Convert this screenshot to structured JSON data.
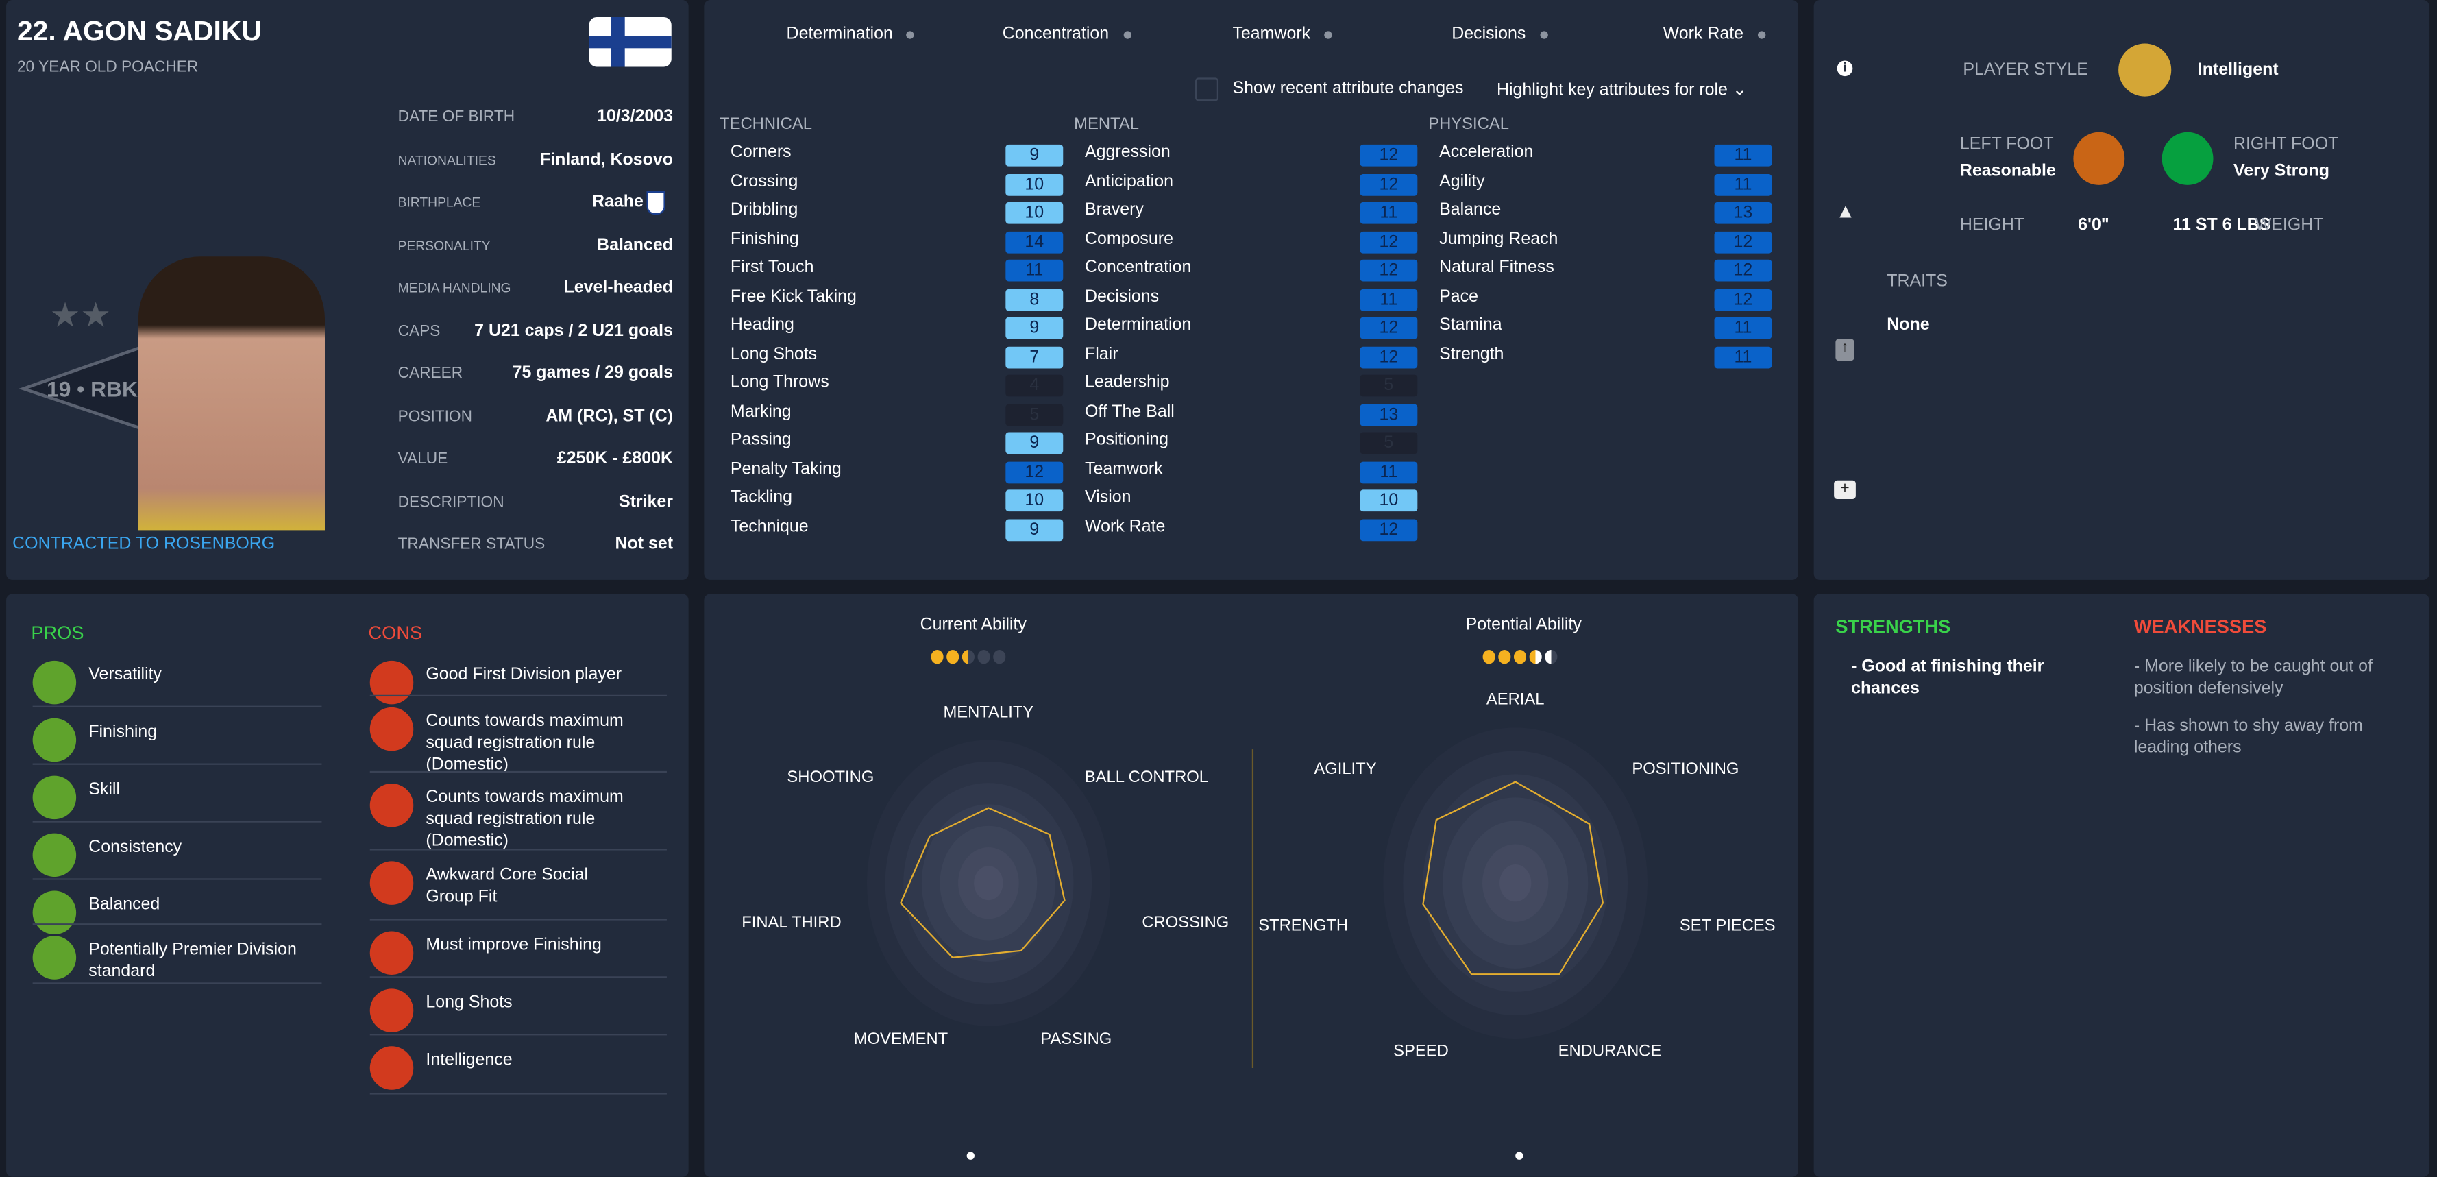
{
  "player": {
    "title": "22. AGON SADIKU",
    "subtitle": "20 YEAR OLD POACHER",
    "contract": "CONTRACTED TO ROSENBORG",
    "club_logo_text": "19 • RBK",
    "info": [
      {
        "label": "DATE OF BIRTH",
        "value": "10/3/2003"
      },
      {
        "label": "NATIONALITIES",
        "value": "Finland, Kosovo"
      },
      {
        "label": "BIRTHPLACE",
        "value": "Raahe"
      },
      {
        "label": "PERSONALITY",
        "value": "Balanced"
      },
      {
        "label": "MEDIA HANDLING",
        "value": "Level-headed"
      },
      {
        "label": "CAPS",
        "value": "7 U21 caps / 2 U21 goals"
      },
      {
        "label": "CAREER",
        "value": "75  games /  29 goals"
      },
      {
        "label": "POSITION",
        "value": "AM (RC), ST (C)"
      },
      {
        "label": "VALUE",
        "value": "£250K - £800K"
      },
      {
        "label": "DESCRIPTION",
        "value": "Striker"
      },
      {
        "label": "TRANSFER STATUS",
        "value": "Not set"
      }
    ]
  },
  "key_attributes": [
    "Determination",
    "Concentration",
    "Teamwork",
    "Decisions",
    "Work Rate"
  ],
  "options": {
    "show_changes": "Show recent attribute changes",
    "show_changes_checked": false,
    "highlight": "Highlight key attributes for role"
  },
  "attributes": {
    "technical": {
      "title": "TECHNICAL",
      "items": [
        [
          "Corners",
          9
        ],
        [
          "Crossing",
          10
        ],
        [
          "Dribbling",
          10
        ],
        [
          "Finishing",
          14
        ],
        [
          "First Touch",
          11
        ],
        [
          "Free Kick Taking",
          8
        ],
        [
          "Heading",
          9
        ],
        [
          "Long Shots",
          7
        ],
        [
          "Long Throws",
          4
        ],
        [
          "Marking",
          5
        ],
        [
          "Passing",
          9
        ],
        [
          "Penalty Taking",
          12
        ],
        [
          "Tackling",
          10
        ],
        [
          "Technique",
          9
        ]
      ]
    },
    "mental": {
      "title": "MENTAL",
      "items": [
        [
          "Aggression",
          12
        ],
        [
          "Anticipation",
          12
        ],
        [
          "Bravery",
          11
        ],
        [
          "Composure",
          12
        ],
        [
          "Concentration",
          12
        ],
        [
          "Decisions",
          11
        ],
        [
          "Determination",
          12
        ],
        [
          "Flair",
          12
        ],
        [
          "Leadership",
          5
        ],
        [
          "Off The Ball",
          13
        ],
        [
          "Positioning",
          5
        ],
        [
          "Teamwork",
          11
        ],
        [
          "Vision",
          10
        ],
        [
          "Work Rate",
          12
        ]
      ]
    },
    "physical": {
      "title": "PHYSICAL",
      "items": [
        [
          "Acceleration",
          11
        ],
        [
          "Agility",
          11
        ],
        [
          "Balance",
          13
        ],
        [
          "Jumping Reach",
          12
        ],
        [
          "Natural Fitness",
          12
        ],
        [
          "Pace",
          12
        ],
        [
          "Stamina",
          11
        ],
        [
          "Strength",
          11
        ]
      ]
    }
  },
  "profile": {
    "player_style_label": "PLAYER STYLE",
    "player_style": "Intelligent",
    "left_foot_label": "LEFT FOOT",
    "left_foot": "Reasonable",
    "right_foot_label": "RIGHT FOOT",
    "right_foot": "Very Strong",
    "height_label": "HEIGHT",
    "height": "6'0\"",
    "weight": "11 ST 6 LBS",
    "weight_label": "WEIGHT",
    "traits_label": "TRAITS",
    "traits": "None",
    "colors": {
      "style": "#d4a636",
      "left_foot": "#c96516",
      "right_foot": "#06a03f"
    }
  },
  "pros": {
    "title": "PROS",
    "items": [
      "Versatility",
      "Finishing",
      "Skill",
      "Consistency",
      "Balanced",
      "Potentially Premier Division standard"
    ]
  },
  "cons": {
    "title": "CONS",
    "items": [
      "Good First Division player",
      "Counts towards maximum squad registration rule (Domestic)",
      "Counts towards maximum squad registration rule (Domestic)",
      "Awkward Core Social Group Fit",
      "Must improve Finishing",
      "Long Shots",
      "Intelligence"
    ]
  },
  "ability": {
    "current_label": "Current Ability",
    "current_stars": 2.5,
    "potential_label": "Potential Ability",
    "potential_stars_range": [
      3.5,
      4.5
    ]
  },
  "chart_data": [
    {
      "type": "radar",
      "title": "Current Ability",
      "axes": [
        "MENTALITY",
        "BALL CONTROL",
        "CROSSING",
        "PASSING",
        "MOVEMENT",
        "FINAL THIRD",
        "SHOOTING"
      ],
      "values": [
        0.5,
        0.52,
        0.52,
        0.5,
        0.55,
        0.6,
        0.5
      ],
      "range": [
        0,
        1
      ]
    },
    {
      "type": "radar",
      "title": "Potential Ability",
      "axes": [
        "AERIAL",
        "POSITIONING",
        "SET PIECES",
        "ENDURANCE",
        "SPEED",
        "STRENGTH",
        "AGILITY"
      ],
      "values": [
        0.62,
        0.58,
        0.55,
        0.62,
        0.62,
        0.58,
        0.62
      ],
      "range": [
        0,
        1
      ]
    }
  ],
  "strengths": {
    "title": "STRENGTHS",
    "items": [
      "- Good at finishing their chances"
    ]
  },
  "weaknesses": {
    "title": "WEAKNESSES",
    "items": [
      "- More likely to be caught out of position defensively",
      "- Has shown to shy away from leading others"
    ]
  }
}
